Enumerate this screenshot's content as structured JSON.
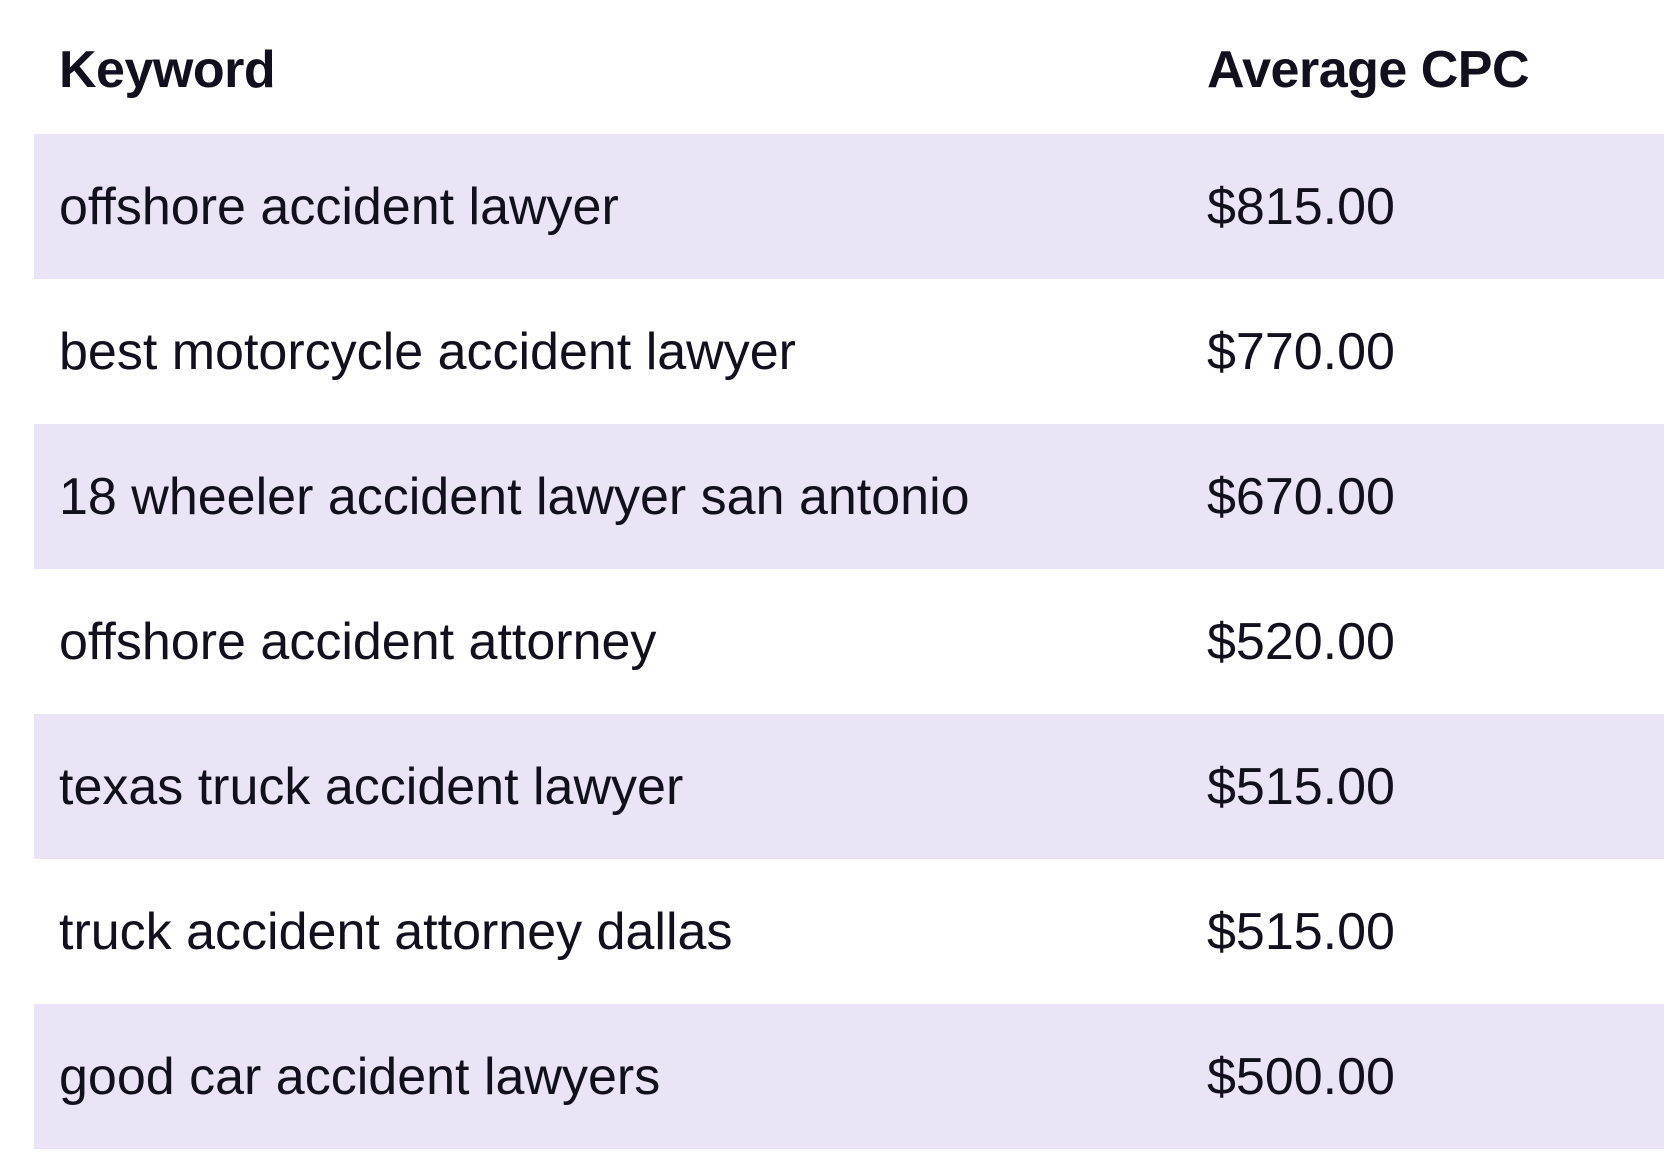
{
  "table": {
    "headers": {
      "keyword": "Keyword",
      "cpc": "Average CPC"
    },
    "rows": [
      {
        "keyword": "offshore accident lawyer",
        "cpc": "$815.00"
      },
      {
        "keyword": "best motorcycle accident lawyer",
        "cpc": "$770.00"
      },
      {
        "keyword": "18 wheeler accident lawyer san antonio",
        "cpc": "$670.00"
      },
      {
        "keyword": "offshore accident attorney",
        "cpc": "$520.00"
      },
      {
        "keyword": "texas truck accident lawyer",
        "cpc": "$515.00"
      },
      {
        "keyword": "truck accident attorney dallas",
        "cpc": "$515.00"
      },
      {
        "keyword": "good car accident lawyers",
        "cpc": "$500.00"
      }
    ]
  },
  "colors": {
    "shaded_row": "#ebe4f6",
    "text": "#12101c",
    "background": "#ffffff"
  }
}
